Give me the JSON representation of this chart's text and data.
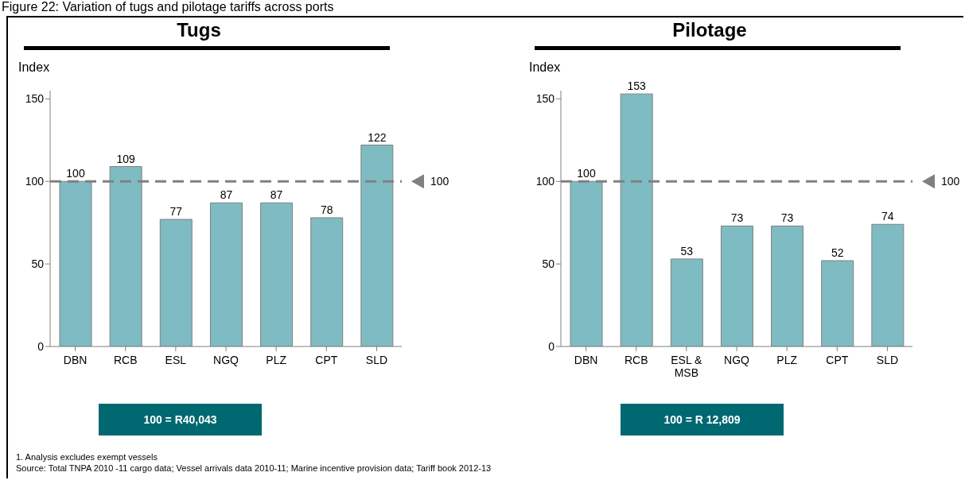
{
  "chart_data": [
    {
      "type": "bar",
      "title": "Tugs",
      "ylabel": "Index",
      "categories": [
        "DBN",
        "RCB",
        "ESL",
        "NGQ",
        "PLZ",
        "CPT",
        "SLD"
      ],
      "values": [
        100,
        109,
        77,
        87,
        87,
        78,
        122
      ],
      "color": "#7fbbc2",
      "ylim": [
        0,
        155
      ],
      "yticks": [
        0,
        50,
        100,
        150
      ],
      "grid": false,
      "data_labels": true,
      "ref_lines": [
        {
          "axis": "y",
          "value": 100,
          "label": "100",
          "color": "#808080",
          "line_style": "dashed"
        }
      ],
      "annotations": [
        "Figure 22: Variation of tugs and pilotage tariffs across ports",
        "100 = R40,043"
      ]
    },
    {
      "type": "bar",
      "title": "Pilotage",
      "ylabel": "Index",
      "categories": [
        "DBN",
        "RCB",
        "ESL & MSB",
        "NGQ",
        "PLZ",
        "CPT",
        "SLD"
      ],
      "values": [
        100,
        153,
        53,
        73,
        73,
        52,
        74
      ],
      "color": "#7fbbc2",
      "ylim": [
        0,
        155
      ],
      "yticks": [
        0,
        50,
        100,
        150
      ],
      "grid": false,
      "data_labels": true,
      "ref_lines": [
        {
          "axis": "y",
          "value": 100,
          "label": "100",
          "color": "#808080",
          "line_style": "dashed"
        }
      ],
      "annotations": [
        "100 = R 12,809",
        "1. Analysis excludes exempt vessels",
        "Source: Total TNPA 2010 -11 cargo data; Vessel arrivals data 2010-11; Marine incentive provision data; Tariff book 2012-13"
      ]
    }
  ]
}
